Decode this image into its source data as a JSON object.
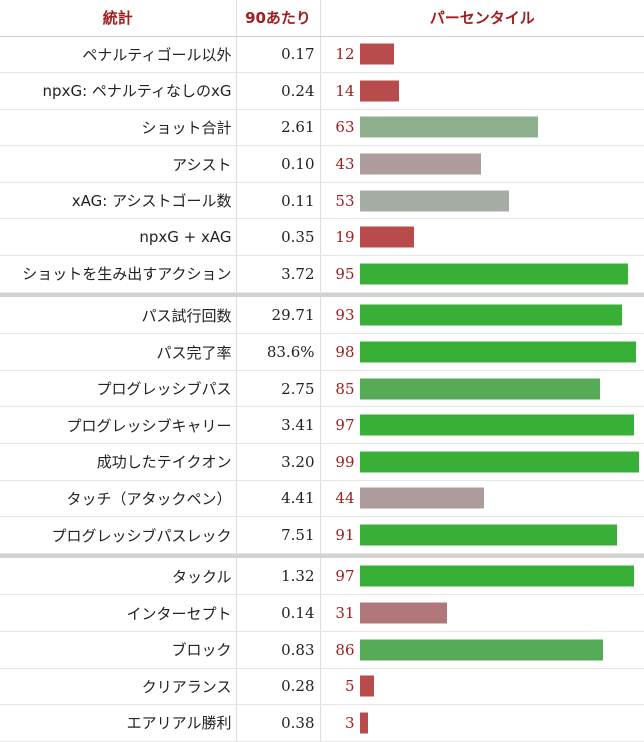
{
  "table": {
    "headers": {
      "stat": "統計",
      "per90": "90あたり",
      "percentile": "パーセンタイル"
    }
  },
  "colors": {
    "header_text": "#a01e1e",
    "percentile_text": "#a01e1e",
    "bar_very_low": "#b84c4c",
    "bar_low": "#b07878",
    "bar_mid_low": "#ae9b9b",
    "bar_mid": "#a4aca4",
    "bar_mid_high": "#8fb08f",
    "bar_high": "#55aa55",
    "bar_very_high": "#38b038"
  },
  "chart_data": {
    "type": "bar",
    "xlim": [
      0,
      100
    ],
    "groups": [
      {
        "rows": [
          {
            "stat": "ペナルティゴール以外",
            "per90": "0.17",
            "percentile": 12
          },
          {
            "stat": "npxG: ペナルティなしのxG",
            "per90": "0.24",
            "percentile": 14
          },
          {
            "stat": "ショット合計",
            "per90": "2.61",
            "percentile": 63
          },
          {
            "stat": "アシスト",
            "per90": "0.10",
            "percentile": 43
          },
          {
            "stat": "xAG: アシストゴール数",
            "per90": "0.11",
            "percentile": 53
          },
          {
            "stat": "npxG + xAG",
            "per90": "0.35",
            "percentile": 19
          },
          {
            "stat": "ショットを生み出すアクション",
            "per90": "3.72",
            "percentile": 95
          }
        ]
      },
      {
        "rows": [
          {
            "stat": "パス試行回数",
            "per90": "29.71",
            "percentile": 93
          },
          {
            "stat": "パス完了率",
            "per90": "83.6%",
            "percentile": 98
          },
          {
            "stat": "プログレッシブパス",
            "per90": "2.75",
            "percentile": 85
          },
          {
            "stat": "プログレッシブキャリー",
            "per90": "3.41",
            "percentile": 97
          },
          {
            "stat": "成功したテイクオン",
            "per90": "3.20",
            "percentile": 99
          },
          {
            "stat": "タッチ（アタックペン）",
            "per90": "4.41",
            "percentile": 44
          },
          {
            "stat": "プログレッシブパスレック",
            "per90": "7.51",
            "percentile": 91
          }
        ]
      },
      {
        "rows": [
          {
            "stat": "タックル",
            "per90": "1.32",
            "percentile": 97
          },
          {
            "stat": "インターセプト",
            "per90": "0.14",
            "percentile": 31
          },
          {
            "stat": "ブロック",
            "per90": "0.83",
            "percentile": 86
          },
          {
            "stat": "クリアランス",
            "per90": "0.28",
            "percentile": 5
          },
          {
            "stat": "エアリアル勝利",
            "per90": "0.38",
            "percentile": 3
          }
        ]
      }
    ]
  }
}
